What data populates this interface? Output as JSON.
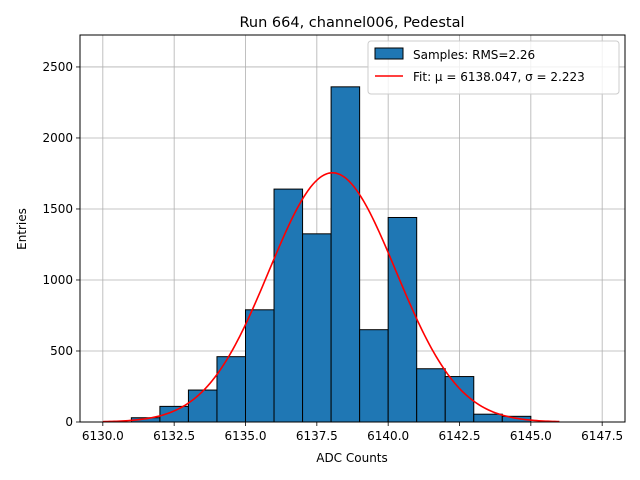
{
  "chart_data": {
    "type": "bar",
    "title": "Run 664, channel006, Pedestal",
    "xlabel": "ADC Counts",
    "ylabel": "Entries",
    "xlim": [
      6129.2,
      6148.3
    ],
    "ylim": [
      0,
      2725
    ],
    "grid": true,
    "legend_position": "top-right",
    "xticks": [
      6130.0,
      6132.5,
      6135.0,
      6137.5,
      6140.0,
      6142.5,
      6145.0,
      6147.5
    ],
    "xtick_labels": [
      "6130.0",
      "6132.5",
      "6135.0",
      "6137.5",
      "6140.0",
      "6142.5",
      "6145.0",
      "6147.5"
    ],
    "yticks": [
      0,
      500,
      1000,
      1500,
      2000,
      2500
    ],
    "ytick_labels": [
      "0",
      "500",
      "1000",
      "1500",
      "2000",
      "2500"
    ],
    "bin_edges": [
      6131,
      6132,
      6133,
      6134,
      6135,
      6136,
      6137,
      6138,
      6139,
      6140,
      6141,
      6142,
      6143,
      6144,
      6145
    ],
    "series": [
      {
        "name": "Samples: RMS=2.26",
        "kind": "histogram",
        "values": [
          30,
          110,
          225,
          460,
          790,
          1640,
          1325,
          2360,
          650,
          1440,
          375,
          320,
          55,
          40
        ],
        "color": "#1f77b4",
        "edgecolor": "#000000"
      },
      {
        "name": "Fit: μ = 6138.047, σ = 2.223",
        "kind": "gaussian",
        "mean": 6138.047,
        "sigma": 2.223,
        "amplitude": 1755,
        "x_range": [
          6130,
          6146
        ],
        "color": "#ff0000"
      }
    ]
  }
}
